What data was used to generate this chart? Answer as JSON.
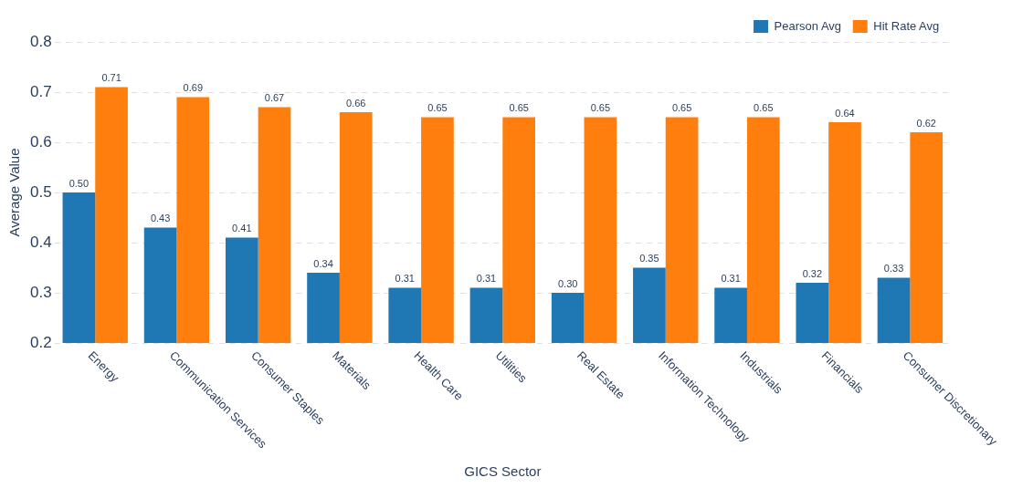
{
  "chart_data": {
    "type": "bar",
    "xlabel": "GICS Sector",
    "ylabel": "Average Value",
    "categories": [
      "Energy",
      "Communication Services",
      "Consumer Staples",
      "Materials",
      "Health Care",
      "Utilities",
      "Real Estate",
      "Information Technology",
      "Industrials",
      "Financials",
      "Consumer Discretionary"
    ],
    "series": [
      {
        "name": "Pearson Avg",
        "color": "#1f77b4",
        "values": [
          0.5,
          0.43,
          0.41,
          0.34,
          0.31,
          0.31,
          0.3,
          0.35,
          0.31,
          0.32,
          0.33
        ],
        "value_labels": [
          "0.50",
          "0.43",
          "0.41",
          "0.34",
          "0.31",
          "0.31",
          "0.30",
          "0.35",
          "0.31",
          "0.32",
          "0.33"
        ]
      },
      {
        "name": "Hit Rate Avg",
        "color": "#ff7f0e",
        "values": [
          0.71,
          0.69,
          0.67,
          0.66,
          0.65,
          0.65,
          0.65,
          0.65,
          0.65,
          0.64,
          0.62
        ],
        "value_labels": [
          "0.71",
          "0.69",
          "0.67",
          "0.66",
          "0.65",
          "0.65",
          "0.65",
          "0.65",
          "0.65",
          "0.64",
          "0.62"
        ]
      }
    ],
    "ylim": [
      0.2,
      0.8
    ],
    "yticks": [
      0.2,
      0.3,
      0.4,
      0.5,
      0.6,
      0.7,
      0.8
    ],
    "grid": "y",
    "legend": "top right"
  }
}
